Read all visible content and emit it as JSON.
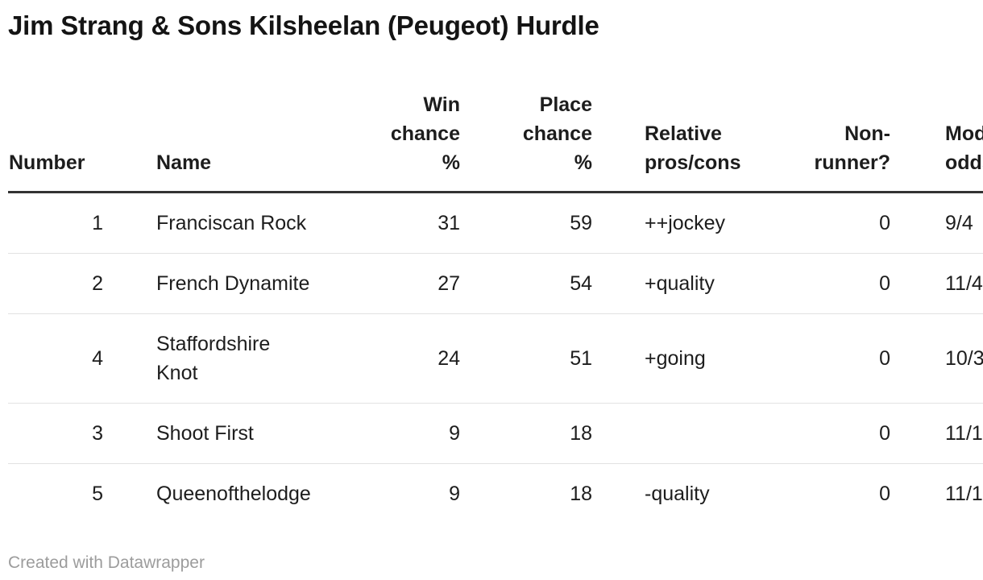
{
  "chart_data": {
    "type": "table",
    "title": "Jim Strang & Sons Kilsheelan (Peugeot) Hurdle",
    "columns": [
      {
        "id": "number",
        "label": "Number",
        "align": "right"
      },
      {
        "id": "name",
        "label": "Name",
        "align": "left"
      },
      {
        "id": "win_chance_pct",
        "label": "Win\nchance\n%",
        "align": "right"
      },
      {
        "id": "place_chance_pct",
        "label": "Place\nchance\n%",
        "align": "right"
      },
      {
        "id": "relative_pros_cons",
        "label": "Relative\npros/cons",
        "align": "left"
      },
      {
        "id": "non_runner",
        "label": "Non-\nrunner?",
        "align": "right"
      },
      {
        "id": "model_odds",
        "label": "Model\nodds",
        "align": "left",
        "clipped_at_right_edge": true
      }
    ],
    "rows": [
      {
        "number": "1",
        "name": "Franciscan Rock",
        "win_chance_pct": 31,
        "place_chance_pct": 59,
        "relative_pros_cons": "++jockey",
        "non_runner": 0,
        "model_odds": "9/4"
      },
      {
        "number": "2",
        "name": "French Dynamite",
        "win_chance_pct": 27,
        "place_chance_pct": 54,
        "relative_pros_cons": "+quality",
        "non_runner": 0,
        "model_odds": "11/4"
      },
      {
        "number": "4",
        "name": "Staffordshire\nKnot",
        "win_chance_pct": 24,
        "place_chance_pct": 51,
        "relative_pros_cons": "+going",
        "non_runner": 0,
        "model_odds": "10/3"
      },
      {
        "number": "3",
        "name": "Shoot First",
        "win_chance_pct": 9,
        "place_chance_pct": 18,
        "relative_pros_cons": "",
        "non_runner": 0,
        "model_odds": "11/1"
      },
      {
        "number": "5",
        "name": "Queenofthelodge",
        "win_chance_pct": 9,
        "place_chance_pct": 18,
        "relative_pros_cons": "-quality",
        "non_runner": 0,
        "model_odds": "11/1"
      }
    ],
    "layout": {
      "grid": "horizontal-row-separators",
      "header_rule_color": "#333333",
      "row_rule_color": "#e2e2e2"
    }
  },
  "footer": {
    "credit": "Created with Datawrapper"
  },
  "colors": {
    "text": "#1d1d1d",
    "title": "#141414",
    "header_border": "#333333",
    "row_border": "#e2e2e2",
    "credit": "#9c9c9c",
    "background": "#ffffff"
  }
}
